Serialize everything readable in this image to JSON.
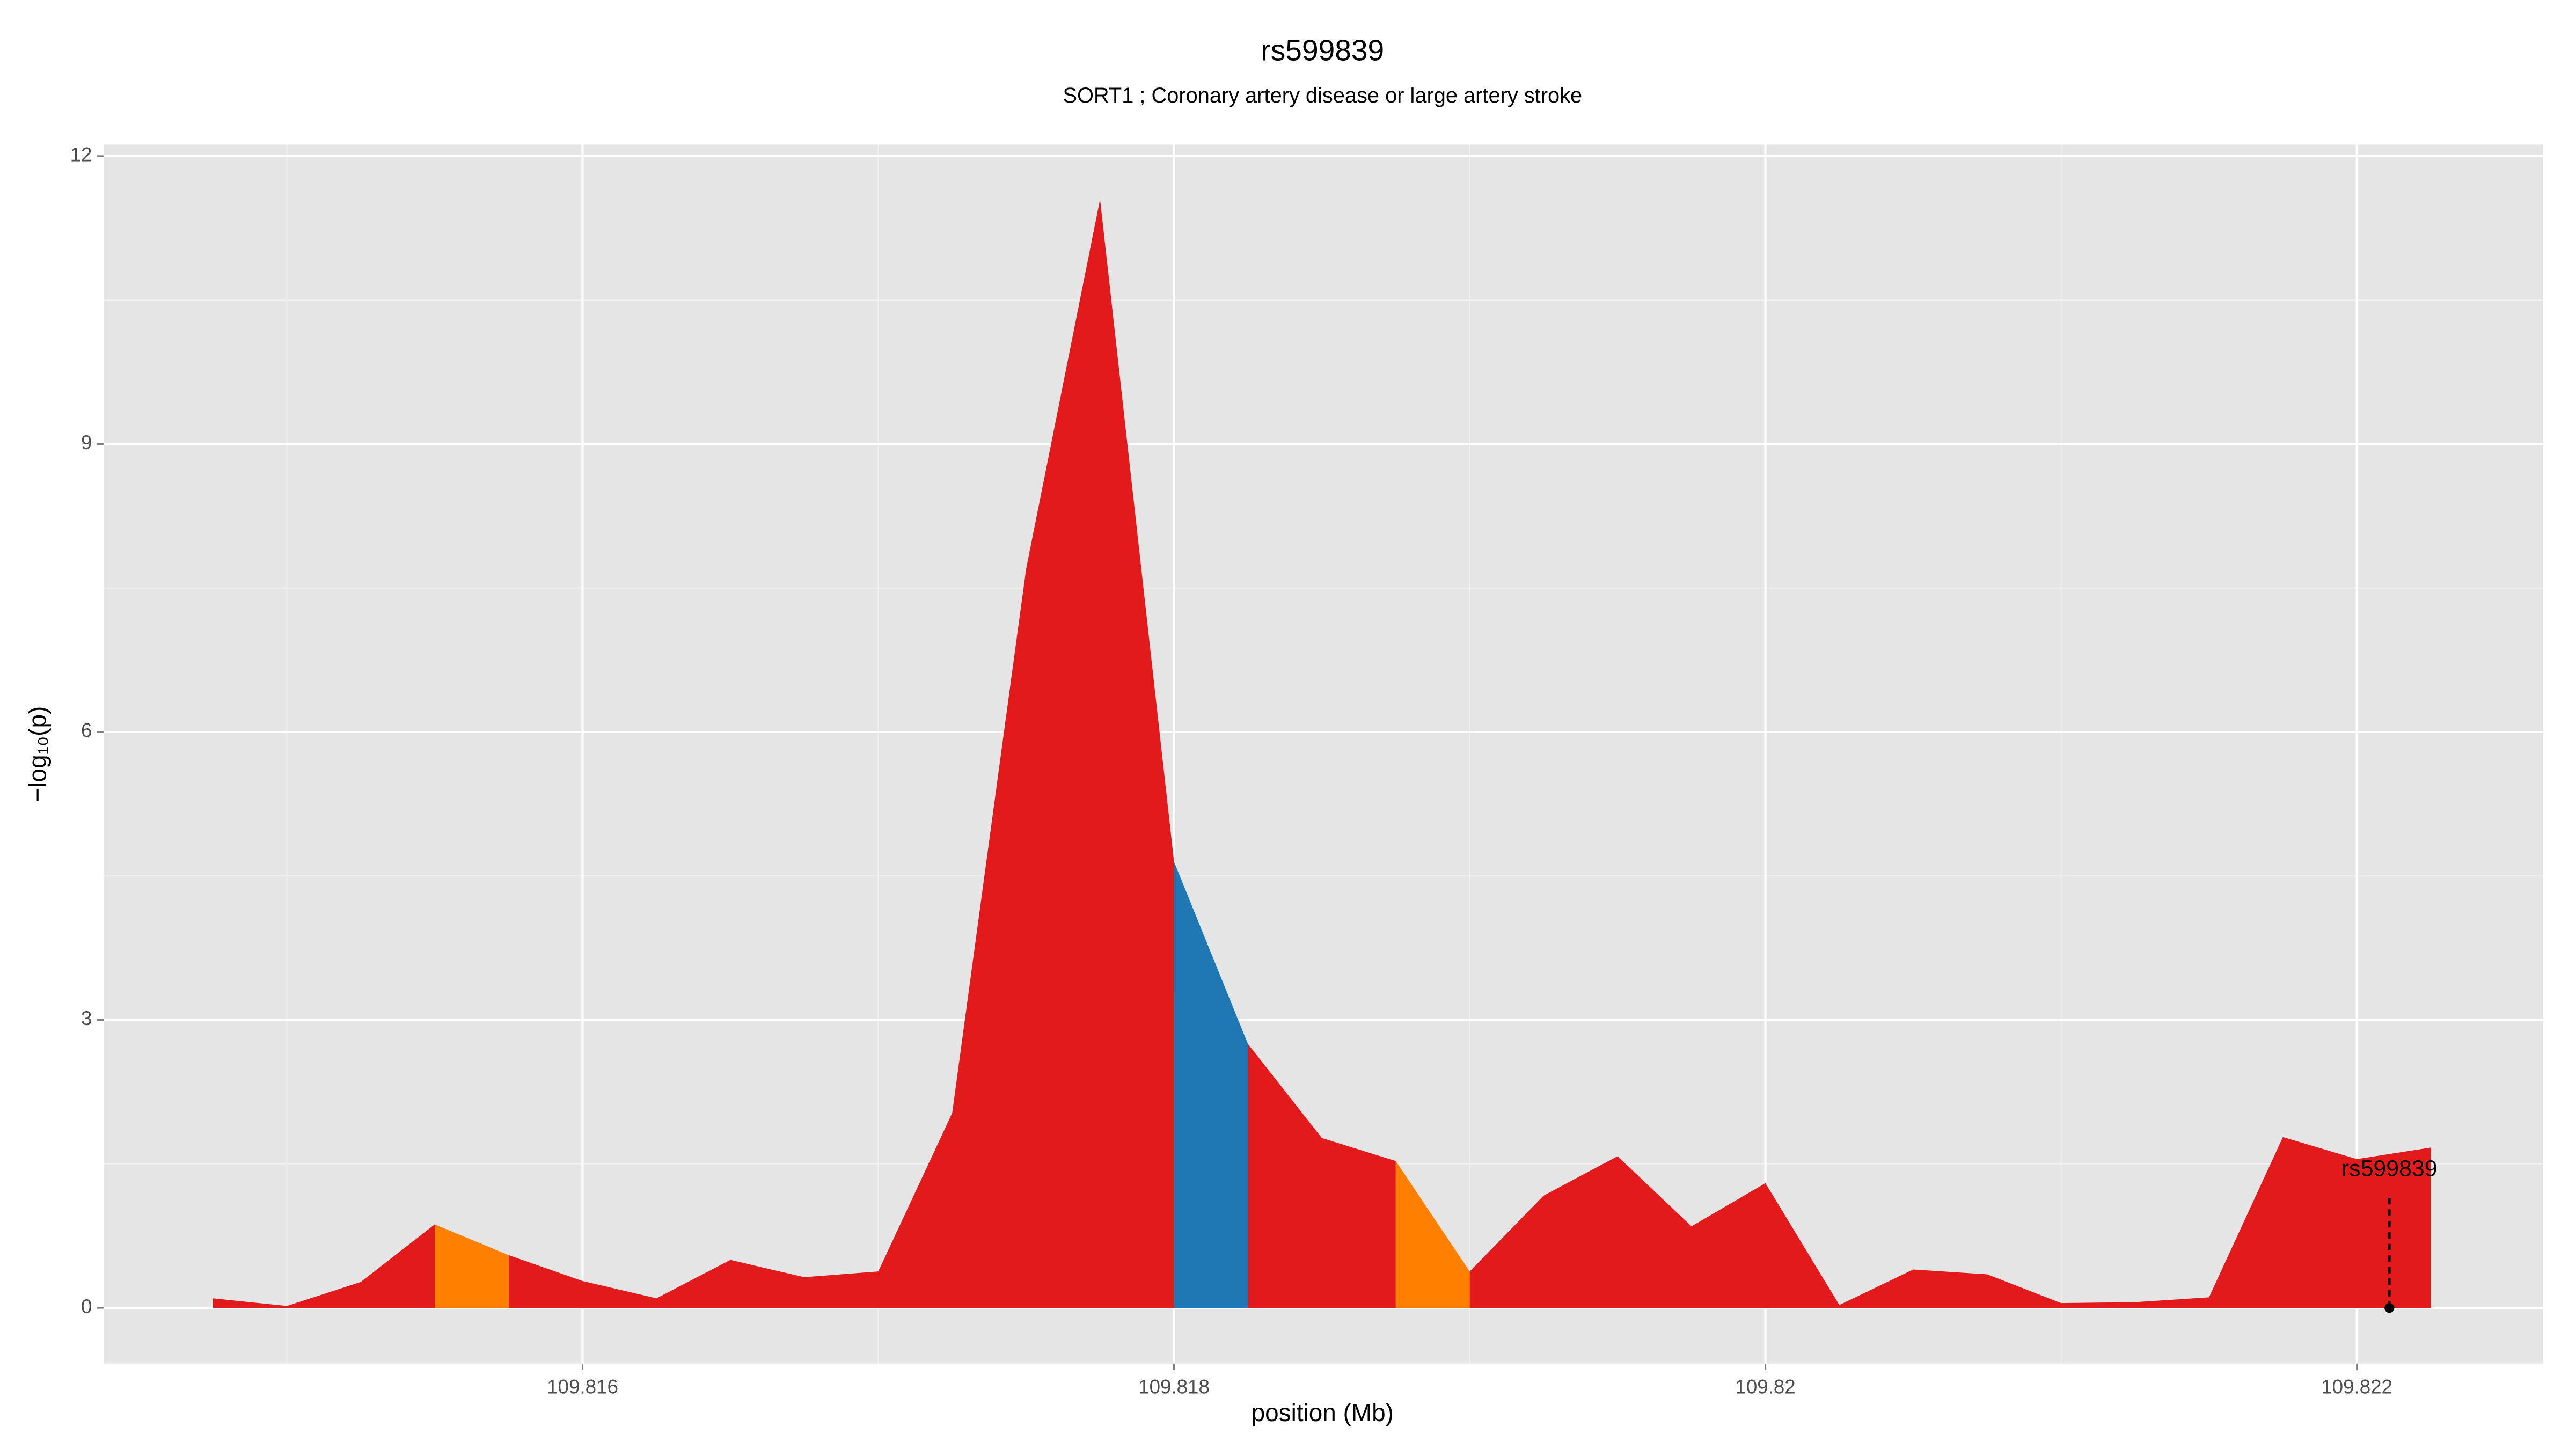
{
  "chart_data": {
    "type": "area",
    "title": "rs599839",
    "subtitle": "SORT1 ; Coronary artery disease or large artery stroke",
    "xlabel": "position (Mb)",
    "ylabel": "−log₁₀(p)",
    "xlim": [
      109.81438,
      109.82263
    ],
    "ylim": [
      -0.58,
      12.12
    ],
    "xticks": [
      109.816,
      109.818,
      109.82,
      109.822
    ],
    "yticks": [
      0,
      3,
      6,
      9,
      12
    ],
    "grid": true,
    "series": [
      {
        "color": "#e31a1c",
        "x": [
          109.81475,
          109.815,
          109.81525,
          109.8155,
          null,
          109.81575,
          109.816,
          109.81625,
          109.8165,
          109.81675,
          109.817,
          109.81725,
          109.8175,
          109.81775,
          109.818,
          null,
          109.81825,
          109.8185,
          109.81875,
          null,
          109.819,
          109.81925,
          109.8195,
          109.81975,
          109.82,
          109.82025,
          109.8205,
          109.82075,
          109.821,
          109.82125,
          109.8215,
          109.82175,
          109.822,
          109.82225
        ],
        "values": [
          0.1,
          0.02,
          0.27,
          0.87,
          null,
          0.55,
          0.28,
          0.1,
          0.5,
          0.32,
          0.38,
          2.03,
          7.7,
          11.55,
          4.65,
          null,
          2.75,
          1.77,
          1.53,
          null,
          0.38,
          1.17,
          1.58,
          0.85,
          1.3,
          0.03,
          0.4,
          0.35,
          0.05,
          0.06,
          0.11,
          1.78,
          1.55,
          1.67
        ]
      },
      {
        "color": "#ff7f00",
        "x": [
          109.8155,
          109.81575,
          null,
          109.81875,
          109.819
        ],
        "values": [
          0.87,
          0.55,
          null,
          1.53,
          0.38
        ]
      },
      {
        "color": "#1f78b4",
        "x": [
          109.818,
          109.81825
        ],
        "values": [
          4.65,
          2.75
        ]
      }
    ],
    "annotation": {
      "text": "rs599839",
      "x": 109.82211,
      "y": 0
    }
  }
}
